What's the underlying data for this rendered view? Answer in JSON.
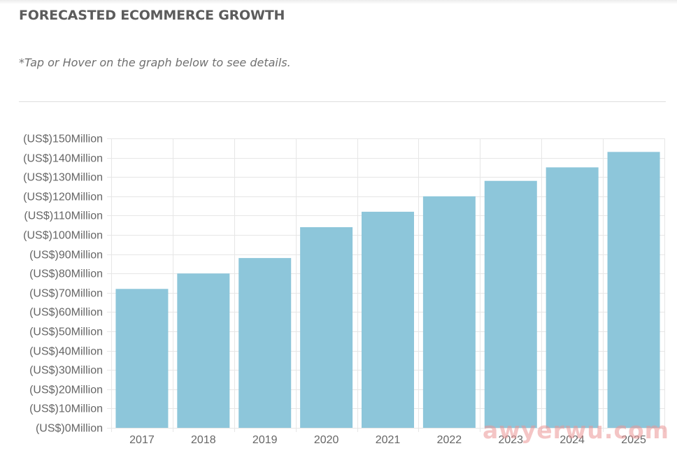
{
  "header": {
    "title": "FORECASTED ECOMMERCE GROWTH",
    "hint": "*Tap or Hover on the graph below to see details."
  },
  "watermark": {
    "text": "awyerwu.com"
  },
  "colors": {
    "bar": "#8dc6da",
    "grid": "#e6e6e6",
    "axis_text": "#666666",
    "title": "#5c5c5c"
  },
  "chart_data": {
    "type": "bar",
    "title": "FORECASTED ECOMMERCE GROWTH",
    "xlabel": "",
    "ylabel": "",
    "categories": [
      "2017",
      "2018",
      "2019",
      "2020",
      "2021",
      "2022",
      "2023",
      "2024",
      "2025"
    ],
    "values": [
      72,
      80,
      88,
      104,
      112,
      120,
      128,
      135,
      143
    ],
    "ylim": [
      0,
      150
    ],
    "yticks": [
      0,
      10,
      20,
      30,
      40,
      50,
      60,
      70,
      80,
      90,
      100,
      110,
      120,
      130,
      140,
      150
    ],
    "ytick_labels": [
      "(US$)0Million",
      "(US$)10Million",
      "(US$)20Million",
      "(US$)30Million",
      "(US$)40Million",
      "(US$)50Million",
      "(US$)60Million",
      "(US$)70Million",
      "(US$)80Million",
      "(US$)90Million",
      "(US$)100Million",
      "(US$)110Million",
      "(US$)120Million",
      "(US$)130Million",
      "(US$)140Million",
      "(US$)150Million"
    ],
    "grid": true,
    "legend": "none"
  }
}
